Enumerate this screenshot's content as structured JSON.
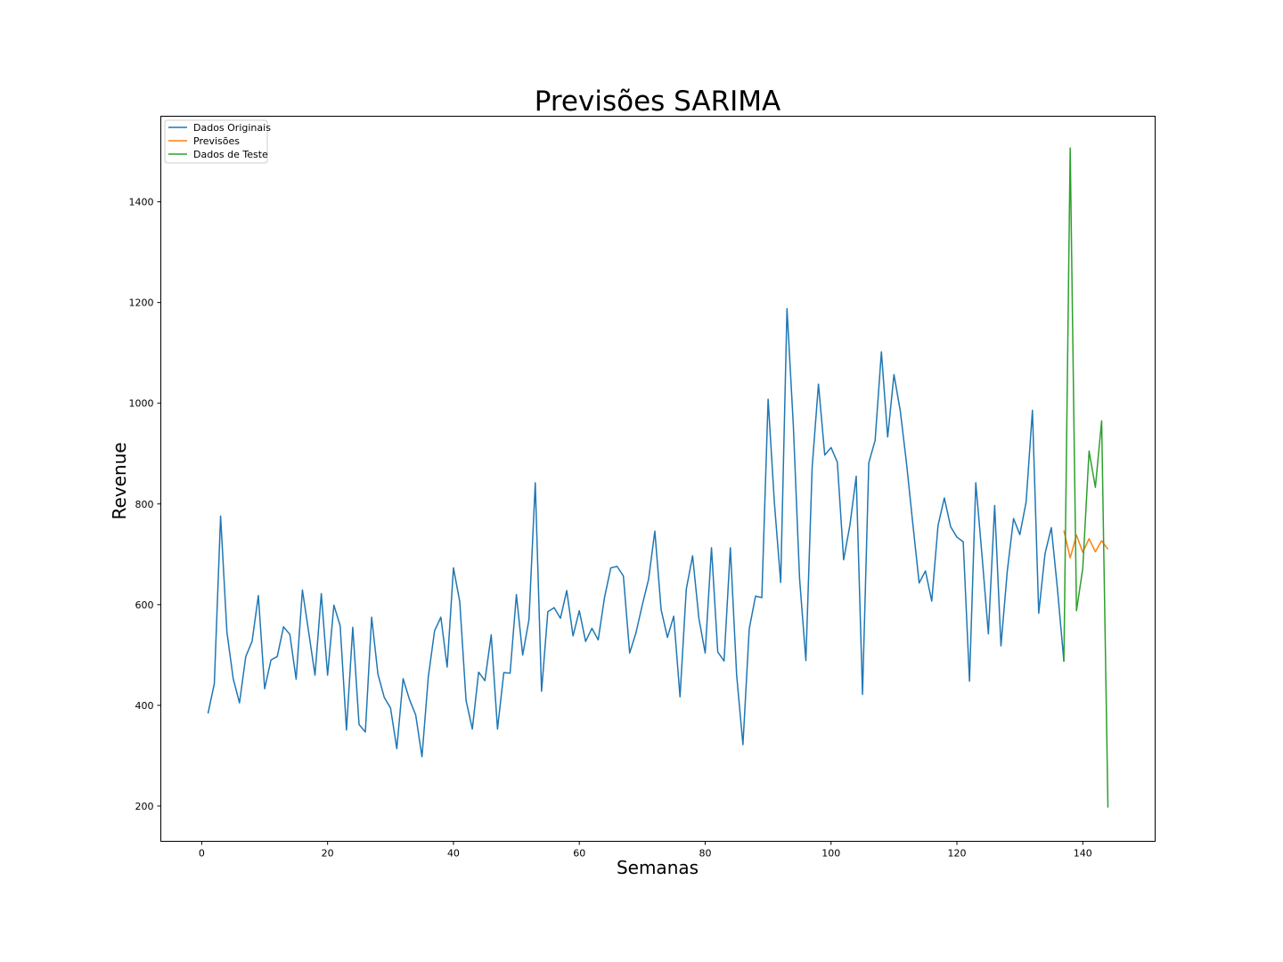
{
  "chart_data": {
    "type": "line",
    "title": "Previsões SARIMA",
    "xlabel": "Semanas",
    "ylabel": "Revenue",
    "xlim": [
      -6.5,
      151.5
    ],
    "ylim": [
      130,
      1570
    ],
    "xticks": [
      0,
      20,
      40,
      60,
      80,
      100,
      120,
      140
    ],
    "yticks": [
      200,
      400,
      600,
      800,
      1000,
      1200,
      1400
    ],
    "grid": false,
    "legend_position": "upper left",
    "series": [
      {
        "name": "Dados Originais",
        "color": "#1f77b4",
        "x": [
          1,
          2,
          3,
          4,
          5,
          6,
          7,
          8,
          9,
          10,
          11,
          12,
          13,
          14,
          15,
          16,
          17,
          18,
          19,
          20,
          21,
          22,
          23,
          24,
          25,
          26,
          27,
          28,
          29,
          30,
          31,
          32,
          33,
          34,
          35,
          36,
          37,
          38,
          39,
          40,
          41,
          42,
          43,
          44,
          45,
          46,
          47,
          48,
          49,
          50,
          51,
          52,
          53,
          54,
          55,
          56,
          57,
          58,
          59,
          60,
          61,
          62,
          63,
          64,
          65,
          66,
          67,
          68,
          69,
          70,
          71,
          72,
          73,
          74,
          75,
          76,
          77,
          78,
          79,
          80,
          81,
          82,
          83,
          84,
          85,
          86,
          87,
          88,
          89,
          90,
          91,
          92,
          93,
          94,
          95,
          96,
          97,
          98,
          99,
          100,
          101,
          102,
          103,
          104,
          105,
          106,
          107,
          108,
          109,
          110,
          111,
          112,
          113,
          114,
          115,
          116,
          117,
          118,
          119,
          120,
          121,
          122,
          123,
          124,
          125,
          126,
          127,
          128,
          129,
          130,
          131,
          132,
          133,
          134,
          135,
          136,
          137
        ],
        "y": [
          384,
          443,
          776,
          546,
          453,
          405,
          497,
          527,
          618,
          433,
          490,
          497,
          556,
          541,
          452,
          629,
          545,
          460,
          622,
          460,
          599,
          558,
          351,
          555,
          362,
          347,
          575,
          462,
          416,
          395,
          314,
          453,
          412,
          381,
          298,
          456,
          548,
          575,
          476,
          673,
          606,
          410,
          353,
          466,
          449,
          540,
          353,
          465,
          464,
          620,
          500,
          570,
          842,
          428,
          586,
          594,
          573,
          628,
          538,
          588,
          527,
          553,
          530,
          614,
          673,
          676,
          657,
          504,
          544,
          599,
          650,
          746,
          590,
          535,
          577,
          417,
          631,
          697,
          573,
          504,
          713,
          506,
          488,
          713,
          460,
          322,
          552,
          617,
          614,
          1008,
          802,
          644,
          1188,
          958,
          652,
          489,
          873,
          1038,
          897,
          912,
          883,
          689,
          758,
          855,
          422,
          882,
          926,
          1102,
          933,
          1057,
          985,
          880,
          760,
          643,
          667,
          607,
          757,
          812,
          755,
          734,
          725,
          448,
          842,
          696,
          542,
          797,
          518,
          666,
          771,
          739,
          804,
          986,
          583,
          701,
          753,
          628,
          487
        ]
      },
      {
        "name": "Previsões",
        "color": "#ff7f0e",
        "x": [
          137,
          138,
          139,
          140,
          141,
          142,
          143,
          144
        ],
        "y": [
          747,
          693,
          738,
          704,
          731,
          705,
          727,
          710
        ]
      },
      {
        "name": "Dados de Teste",
        "color": "#2ca02c",
        "x": [
          137,
          138,
          139,
          140,
          141,
          142,
          143,
          144
        ],
        "y": [
          487,
          1507,
          588,
          672,
          905,
          833,
          965,
          197
        ]
      }
    ]
  }
}
